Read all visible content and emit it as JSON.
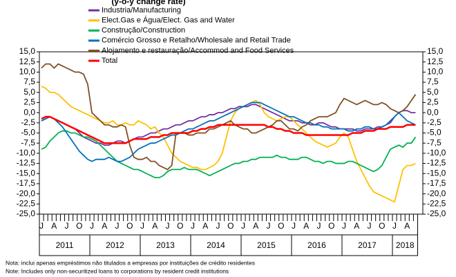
{
  "chart_data": {
    "type": "line",
    "subtitle": "(y-o-y change rate)",
    "categories": [
      "J",
      null,
      null,
      "A",
      null,
      null,
      "J",
      null,
      null,
      "O",
      null,
      null,
      "J",
      null,
      null,
      "A",
      null,
      null,
      "J",
      null,
      null,
      "O",
      null,
      null,
      "J",
      null,
      null,
      "A",
      null,
      null,
      "J",
      null,
      null,
      "O",
      null,
      null,
      "J",
      null,
      null,
      "A",
      null,
      null,
      "J",
      null,
      null,
      "O",
      null,
      null,
      "J",
      null,
      null,
      "A",
      null,
      null,
      "J",
      null,
      null,
      "O",
      null,
      null,
      "J",
      null,
      null,
      "A",
      null,
      null,
      "J",
      null,
      null,
      "O",
      null,
      null,
      "J",
      null,
      null,
      "A",
      null,
      null,
      "J",
      null,
      null,
      "O",
      null,
      null,
      "J",
      null,
      null,
      "A",
      null,
      null
    ],
    "years": [
      "2011",
      "2012",
      "2013",
      "2014",
      "2015",
      "2016",
      "2017",
      "2018"
    ],
    "series": [
      {
        "name": "Industria/Manufacturing",
        "color": "#7030a0",
        "values": [
          -2,
          -1.5,
          -1,
          -1.5,
          -2,
          -2.5,
          -3,
          -3.5,
          -4,
          -5,
          -6,
          -6.5,
          -7,
          -7.5,
          -7.5,
          -8,
          -8,
          -7.5,
          -7,
          -7,
          -7.5,
          -7,
          -6.5,
          -6,
          -6,
          -5.5,
          -5,
          -5,
          -4.5,
          -4,
          -4,
          -3.5,
          -3,
          -3,
          -2.5,
          -2,
          -2,
          -1.5,
          -1,
          -1,
          -0.5,
          -0.5,
          0,
          0,
          0.5,
          1,
          1,
          1.5,
          1.5,
          1.5,
          2,
          2,
          1.5,
          1,
          0.5,
          0,
          -0.5,
          -1,
          -1.5,
          -2,
          -2,
          -2,
          -2.5,
          -2.5,
          -3,
          -3,
          -2.5,
          -2.5,
          -3,
          -3.5,
          -3.5,
          -4,
          -4,
          -4,
          -4,
          -4.5,
          -4.5,
          -4,
          -4,
          -4,
          -3.5,
          -3.5,
          -3,
          -2.5,
          -1,
          0,
          0.5,
          0.5,
          0,
          0
        ]
      },
      {
        "name": "Elect.Gas e Água/Elect. Gas and Water",
        "color": "#ffc000",
        "values": [
          6.5,
          6,
          5,
          5,
          4.5,
          3.5,
          2.5,
          1.5,
          1,
          0.5,
          0,
          -0.5,
          -1,
          -1.5,
          -2,
          -2.5,
          -2.5,
          -2,
          -3,
          -3,
          -2.5,
          -3,
          -3,
          -2,
          -2.5,
          -3,
          -4,
          -3.5,
          -5,
          -6,
          -8,
          -10,
          -11,
          -12,
          -12.5,
          -13,
          -13.5,
          -13.5,
          -14,
          -14,
          -13.5,
          -13,
          -12,
          -10,
          -6,
          -2,
          0,
          1,
          1.5,
          2,
          2.5,
          3,
          2,
          0,
          -1,
          -1.5,
          -2,
          -1.5,
          -1,
          -1,
          -2,
          -3,
          -4,
          -5,
          -6,
          -7,
          -7.5,
          -8,
          -8.5,
          -8,
          -7.5,
          -6,
          -5,
          -6,
          -9,
          -12,
          -14,
          -16,
          -18,
          -19.5,
          -20,
          -20.5,
          -21,
          -21.5,
          -22,
          -18,
          -14,
          -13,
          -13,
          -12.5
        ]
      },
      {
        "name": "Construção/Construction",
        "color": "#00b050",
        "values": [
          -9,
          -8.5,
          -7,
          -6,
          -5,
          -4.5,
          -4.5,
          -5,
          -5,
          -5.5,
          -6,
          -6,
          -6.5,
          -7,
          -8,
          -9,
          -10,
          -11,
          -12,
          -12.5,
          -13,
          -13.5,
          -14,
          -14,
          -14.5,
          -15,
          -15.5,
          -16,
          -16,
          -15.5,
          -14.5,
          -14,
          -14,
          -14,
          -13.5,
          -14,
          -14,
          -14,
          -14.5,
          -15,
          -15.5,
          -15,
          -14.5,
          -14,
          -13.5,
          -13,
          -12.5,
          -12.5,
          -12,
          -12,
          -11.5,
          -11.5,
          -11,
          -11,
          -11,
          -11,
          -10.5,
          -11,
          -11,
          -11.5,
          -11.5,
          -11.5,
          -11,
          -11,
          -11.5,
          -12,
          -12,
          -12.5,
          -12,
          -12,
          -12.5,
          -12.5,
          -12.5,
          -12,
          -12,
          -12.5,
          -13,
          -13.5,
          -14,
          -14.5,
          -14,
          -13,
          -11,
          -9,
          -8.5,
          -8,
          -8.5,
          -7.5,
          -7.5,
          -6
        ]
      },
      {
        "name": "Comércio Grosso e Retalho/Wholesale and Retail Trade",
        "color": "#0070c0",
        "values": [
          -2,
          -1.5,
          -1,
          -1.5,
          -2.5,
          -3.5,
          -5,
          -6.5,
          -8,
          -9.5,
          -10.5,
          -11.5,
          -12,
          -11.5,
          -11.5,
          -11.5,
          -11,
          -11.5,
          -12,
          -12,
          -11.5,
          -11,
          -10,
          -9,
          -8.5,
          -8,
          -7.5,
          -7.5,
          -7,
          -6.5,
          -6,
          -5.5,
          -5.5,
          -5,
          -4.5,
          -4,
          -4,
          -3.5,
          -3,
          -2.5,
          -2,
          -2,
          -1.5,
          -1,
          -0.5,
          0,
          0.5,
          1,
          1.5,
          2,
          2.5,
          2.5,
          2.5,
          2,
          1.5,
          1,
          0.5,
          0,
          -0.5,
          -1,
          -1,
          -1.5,
          -2,
          -2.5,
          -2.5,
          -3,
          -3,
          -3.5,
          -3.5,
          -4,
          -4,
          -4,
          -4,
          -4.5,
          -4.5,
          -4,
          -4,
          -3.5,
          -3.5,
          -4,
          -4,
          -3.5,
          -3,
          -2,
          -1,
          0,
          -1,
          -2,
          -2.5,
          -3
        ]
      },
      {
        "name": "Alojamento e restauração/Accommod and Food Services",
        "color": "#7f4f21",
        "values": [
          11,
          12,
          12,
          11,
          12,
          11.5,
          11,
          10.5,
          10,
          10,
          9.5,
          7,
          0,
          -1,
          -2,
          -3,
          -3,
          -3.5,
          -3.5,
          -3,
          -3.5,
          -8,
          -11,
          -11.5,
          -11.5,
          -11,
          -12,
          -12,
          -13,
          -13.5,
          -14,
          -13,
          -5,
          -5,
          -5,
          -5.5,
          -5.5,
          -5,
          -5,
          -5,
          -4,
          -4,
          -3.5,
          -3,
          -2.5,
          -2,
          -3,
          -3.5,
          -4,
          -4,
          -5,
          -5,
          -4.5,
          -4,
          -3.5,
          -3,
          -2,
          -2,
          -3,
          -4,
          -4,
          -4.5,
          -3.5,
          -3,
          -2,
          -1.5,
          -1,
          -1,
          -1,
          -0.5,
          0,
          2,
          3.5,
          3,
          2.5,
          2,
          2.5,
          3,
          2.5,
          2,
          2,
          2.5,
          2,
          1,
          0.5,
          0,
          0.5,
          1.5,
          3,
          4.5
        ]
      },
      {
        "name": "Total",
        "color": "#ff0000",
        "values": [
          -1.5,
          -1,
          -1,
          -1.5,
          -2,
          -2.5,
          -3,
          -3.5,
          -4,
          -4.5,
          -5,
          -5.5,
          -6,
          -6.5,
          -7,
          -7.5,
          -7.5,
          -7.5,
          -7.5,
          -7.5,
          -7.5,
          -7,
          -6.5,
          -6.5,
          -6.5,
          -6.5,
          -6,
          -6,
          -6,
          -5.5,
          -5.5,
          -5,
          -5,
          -5,
          -5,
          -5,
          -4.5,
          -4.5,
          -4,
          -4,
          -3.5,
          -3.5,
          -3,
          -3,
          -3,
          -3,
          -3,
          -3,
          -3,
          -3,
          -3,
          -3,
          -3,
          -3,
          -3.5,
          -3.5,
          -4,
          -4,
          -4.5,
          -4.5,
          -5,
          -5,
          -5,
          -5.5,
          -5.5,
          -5.5,
          -5.5,
          -5.5,
          -5.5,
          -5.5,
          -5.5,
          -5.5,
          -5.5,
          -5.5,
          -5,
          -5,
          -5,
          -4.5,
          -4.5,
          -4.5,
          -4,
          -4,
          -4,
          -3.5,
          -3.5,
          -3.5,
          -3.5,
          -3,
          -3,
          -3
        ]
      }
    ],
    "ylim": [
      -25,
      15
    ],
    "yticks": [
      {
        "value": 15,
        "label": "15,0"
      },
      {
        "value": 12.5,
        "label": "12,5"
      },
      {
        "value": 10,
        "label": "10,0"
      },
      {
        "value": 7.5,
        "label": "7,5"
      },
      {
        "value": 5,
        "label": "5,0"
      },
      {
        "value": 2.5,
        "label": "2,5"
      },
      {
        "value": 0,
        "label": "0,0"
      },
      {
        "value": -2.5,
        "label": "-2,5"
      },
      {
        "value": -5,
        "label": "-5,0"
      },
      {
        "value": -7.5,
        "label": "-7,5"
      },
      {
        "value": -10,
        "label": "-10,0"
      },
      {
        "value": -12.5,
        "label": "-12,5"
      },
      {
        "value": -15,
        "label": "-15,0"
      },
      {
        "value": -17.5,
        "label": "-17,5"
      },
      {
        "value": -20,
        "label": "-20,0"
      },
      {
        "value": -22.5,
        "label": "-22,5"
      },
      {
        "value": -25,
        "label": "-25,0"
      }
    ],
    "notes": [
      "Nota: inclui apenas empréstimos não titulados a empresas por instituições de crédito residentes",
      "Note: Includes only non-securitized loans to corporations by resident credit institutions"
    ]
  }
}
